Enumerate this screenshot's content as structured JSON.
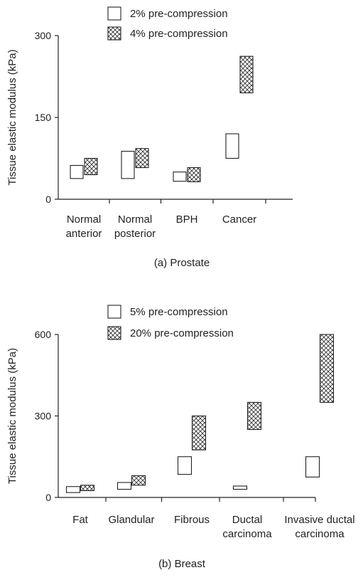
{
  "chart_data": [
    {
      "type": "floating-bar",
      "caption": "(a) Prostate",
      "ylabel": "Tissue elastic modulus (kPa)",
      "ylim": [
        0,
        300
      ],
      "yticks": [
        "0",
        "150",
        "300"
      ],
      "categories": [
        [
          "Normal",
          "anterior"
        ],
        [
          "Normal",
          "posterior"
        ],
        [
          "BPH"
        ],
        [
          "Cancer"
        ]
      ],
      "series": [
        {
          "name": "2% pre-compression",
          "pattern": "none",
          "ranges": [
            [
              38,
              62
            ],
            [
              38,
              88
            ],
            [
              33,
              50
            ],
            [
              75,
              120
            ]
          ]
        },
        {
          "name": "4% pre-compression",
          "pattern": "crosshatch",
          "ranges": [
            [
              45,
              75
            ],
            [
              58,
              93
            ],
            [
              32,
              58
            ],
            [
              195,
              262
            ]
          ]
        }
      ],
      "legend": "top"
    },
    {
      "type": "floating-bar",
      "caption": "(b) Breast",
      "ylabel": "Tissue elastic modulus (kPa)",
      "ylim": [
        0,
        600
      ],
      "yticks": [
        "0",
        "300",
        "600"
      ],
      "categories": [
        [
          "Fat"
        ],
        [
          "Glandular"
        ],
        [
          "Fibrous"
        ],
        [
          "Ductal",
          "carcinoma"
        ],
        [
          "Invasive ductal",
          "carcinoma"
        ]
      ],
      "series": [
        {
          "name": "5% pre-compression",
          "pattern": "none",
          "ranges": [
            [
              18,
              40
            ],
            [
              30,
              55
            ],
            [
              85,
              150
            ],
            [
              30,
              42
            ],
            [
              75,
              150
            ]
          ]
        },
        {
          "name": "20% pre-compression",
          "pattern": "crosshatch",
          "ranges": [
            [
              25,
              45
            ],
            [
              45,
              80
            ],
            [
              175,
              300
            ],
            [
              250,
              350
            ],
            [
              350,
              600
            ]
          ]
        }
      ],
      "legend": "top"
    }
  ]
}
